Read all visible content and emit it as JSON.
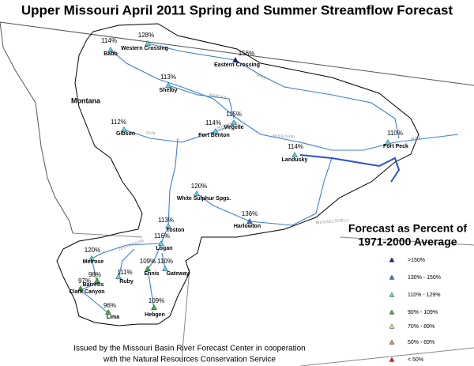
{
  "title": "Upper Missouri April 2011 Spring and Summer Streamflow Forecast",
  "state_label": "Montana",
  "stations": [
    {
      "name": "Babb",
      "percent": "114%",
      "color": "#5ad8e0"
    },
    {
      "name": "Western Crossing",
      "percent": "128%",
      "color": "#5ad8e0"
    },
    {
      "name": "Eastern Crossing",
      "percent": "156%",
      "color": "#1a1aa0"
    },
    {
      "name": "Shelby",
      "percent": "113%",
      "color": "#5ad8e0"
    },
    {
      "name": "Virgelle",
      "percent": "115%",
      "color": "#5ad8e0"
    },
    {
      "name": "Fort Benton",
      "percent": "114%",
      "color": "#5ad8e0"
    },
    {
      "name": "Gibson",
      "percent": "112%",
      "color": "#5ad8e0"
    },
    {
      "name": "Fort Peck",
      "percent": "110%",
      "color": "#5ad8e0"
    },
    {
      "name": "Landusky",
      "percent": "114%",
      "color": "#5ad8e0"
    },
    {
      "name": "White Sulphur Spgs.",
      "percent": "120%",
      "color": "#5ad8e0"
    },
    {
      "name": "Harlowton",
      "percent": "136%",
      "color": "#3a78d0"
    },
    {
      "name": "Toston",
      "percent": "113%",
      "color": "#5ad8e0"
    },
    {
      "name": "Logan",
      "percent": "116%",
      "color": "#5ad8e0"
    },
    {
      "name": "Melrose",
      "percent": "120%",
      "color": "#5ad8e0"
    },
    {
      "name": "Ennis",
      "percent": "109%",
      "color": "#3cb83c"
    },
    {
      "name": "Gateway",
      "percent": "110%",
      "color": "#5ad8e0"
    },
    {
      "name": "Ruby",
      "percent": "111%",
      "color": "#5ad8e0"
    },
    {
      "name": "Barretts",
      "percent": "98%",
      "color": "#3cb83c"
    },
    {
      "name": "Clark Canyon",
      "percent": "97%",
      "color": "#3cb83c"
    },
    {
      "name": "Lima",
      "percent": "96%",
      "color": "#3cb83c"
    },
    {
      "name": "Hebgen",
      "percent": "109%",
      "color": "#3cb83c"
    }
  ],
  "river_labels": [
    "MILK",
    "MARIAS",
    "MISSOURI",
    "SUN",
    "MISSOURI",
    "MUSSELSHELL",
    "MILK",
    "JEFFERSON"
  ],
  "legend": {
    "title": [
      "Forecast as Percent of",
      "1971-2000 Average"
    ],
    "items": [
      {
        "label": ">150%",
        "color": "#1a1aa0"
      },
      {
        "label": "130% - 150%",
        "color": "#3a78d0"
      },
      {
        "label": "110% - 129%",
        "color": "#5ad8e0"
      },
      {
        "label": "90% - 109%",
        "color": "#3cb83c"
      },
      {
        "label": "70% - 89%",
        "color": "#f0e040"
      },
      {
        "label": "50% - 69%",
        "color": "#e89030"
      },
      {
        "label": "< 50%",
        "color": "#e02020"
      }
    ]
  },
  "footer": [
    "Issued by the Missouri Basin River Forecast Center in cooperation",
    "with the Natural Resources Conservation Service"
  ]
}
